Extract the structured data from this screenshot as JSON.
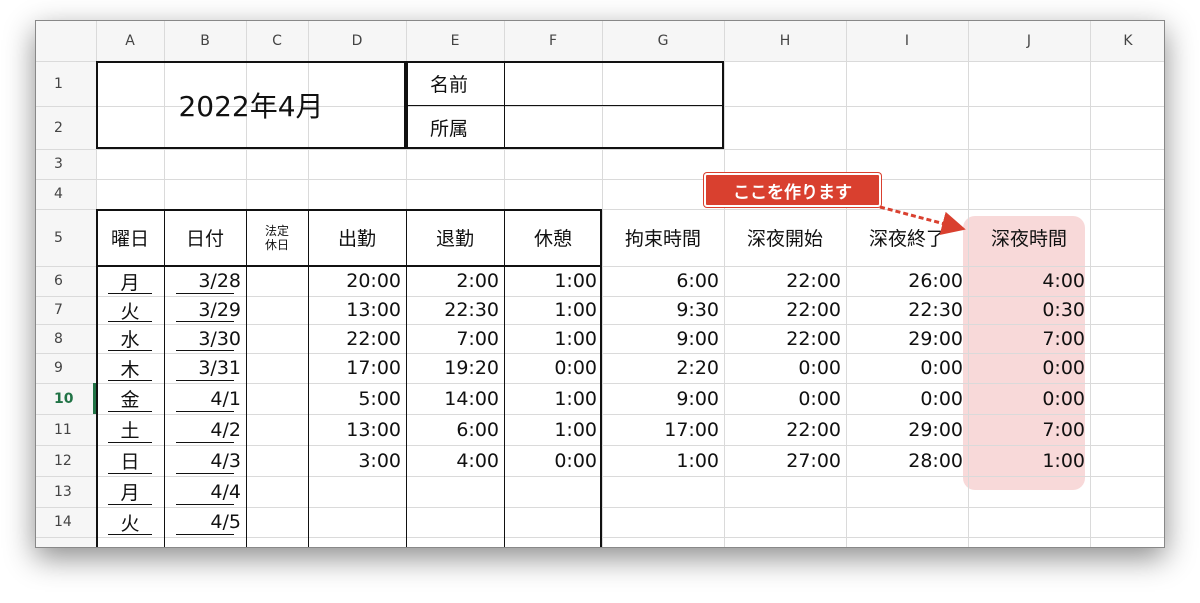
{
  "column_headers": [
    "A",
    "B",
    "C",
    "D",
    "E",
    "F",
    "G",
    "H",
    "I",
    "J",
    "K"
  ],
  "row_headers": [
    "1",
    "2",
    "3",
    "4",
    "5",
    "6",
    "7",
    "8",
    "9",
    "10",
    "11",
    "12",
    "13",
    "14"
  ],
  "title": "2022年4月",
  "info_labels": [
    "名前",
    "所属"
  ],
  "callout": "ここを作ります",
  "table": {
    "header": [
      "曜日",
      "日付",
      "法定休日",
      "出勤",
      "退勤",
      "休憩",
      "拘束時間",
      "深夜開始",
      "深夜終了",
      "深夜時間"
    ],
    "rows": [
      {
        "day": "月",
        "date": "3/28",
        "start": "20:00",
        "end": "2:00",
        "break": "1:00",
        "bound": "6:00",
        "night_start": "22:00",
        "night_end": "26:00",
        "night": "4:00"
      },
      {
        "day": "火",
        "date": "3/29",
        "start": "13:00",
        "end": "22:30",
        "break": "1:00",
        "bound": "9:30",
        "night_start": "22:00",
        "night_end": "22:30",
        "night": "0:30"
      },
      {
        "day": "水",
        "date": "3/30",
        "start": "22:00",
        "end": "7:00",
        "break": "1:00",
        "bound": "9:00",
        "night_start": "22:00",
        "night_end": "29:00",
        "night": "7:00"
      },
      {
        "day": "木",
        "date": "3/31",
        "start": "17:00",
        "end": "19:20",
        "break": "0:00",
        "bound": "2:20",
        "night_start": "0:00",
        "night_end": "0:00",
        "night": "0:00"
      },
      {
        "day": "金",
        "date": "4/1",
        "start": "5:00",
        "end": "14:00",
        "break": "1:00",
        "bound": "9:00",
        "night_start": "0:00",
        "night_end": "0:00",
        "night": "0:00"
      },
      {
        "day": "土",
        "date": "4/2",
        "start": "13:00",
        "end": "6:00",
        "break": "1:00",
        "bound": "17:00",
        "night_start": "22:00",
        "night_end": "29:00",
        "night": "7:00"
      },
      {
        "day": "日",
        "date": "4/3",
        "start": "3:00",
        "end": "4:00",
        "break": "0:00",
        "bound": "1:00",
        "night_start": "27:00",
        "night_end": "28:00",
        "night": "1:00"
      },
      {
        "day": "月",
        "date": "4/4"
      },
      {
        "day": "火",
        "date": "4/5"
      }
    ]
  }
}
